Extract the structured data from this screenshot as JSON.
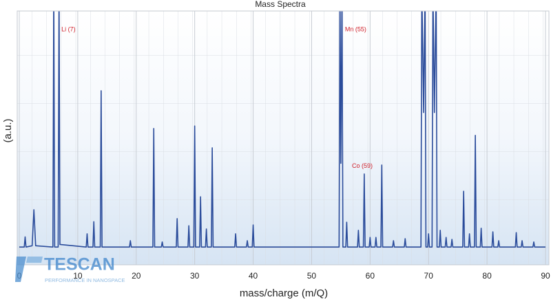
{
  "chart_data": {
    "type": "line",
    "title": "Mass Spectra",
    "x_label": "mass/charge (m/Q)",
    "y_label": "(a.u.)",
    "color": "#2b4c9b",
    "xlim": [
      0,
      90
    ],
    "ylim": [
      0,
      100
    ],
    "xticks": [
      0,
      10,
      20,
      30,
      40,
      50,
      60,
      70,
      80,
      90
    ],
    "grid": true,
    "x": [
      0,
      0.85,
      1,
      1.15,
      2.2,
      2.5,
      2.8,
      5.75,
      5.9,
      6.05,
      6.65,
      6.8,
      6.95,
      11.45,
      11.6,
      11.75,
      12.6,
      12.75,
      12.9,
      13.85,
      14,
      14.15,
      18.85,
      19,
      19.15,
      22.85,
      23,
      23.15,
      24.3,
      24.45,
      24.6,
      26.85,
      27,
      27.15,
      28.85,
      29,
      29.15,
      29.85,
      30,
      30.15,
      30.85,
      31,
      31.15,
      31.85,
      32,
      32.15,
      32.85,
      33,
      33.15,
      36.85,
      37,
      37.15,
      38.85,
      39,
      39.15,
      39.85,
      40,
      40.15,
      54.7,
      54.85,
      55,
      55.2,
      55.35,
      55.85,
      56,
      56.15,
      57.85,
      58,
      58.15,
      58.85,
      59,
      59.15,
      59.85,
      60,
      60.15,
      60.85,
      61,
      61.15,
      61.85,
      62,
      62.15,
      63.85,
      64,
      64.15,
      65.85,
      66,
      66.15,
      68.7,
      68.85,
      69.15,
      69.4,
      69.55,
      69.85,
      70,
      70.15,
      70.6,
      70.75,
      71,
      71.3,
      71.45,
      71.85,
      72,
      72.15,
      72.85,
      73,
      73.15,
      73.85,
      74,
      74.15,
      75.85,
      76,
      76.15,
      76.85,
      77,
      77.15,
      77.85,
      78,
      78.15,
      78.85,
      79,
      79.15,
      80.85,
      81,
      81.15,
      81.85,
      82,
      82.15,
      84.85,
      85,
      85.15,
      85.85,
      86,
      86.15,
      87.85,
      88,
      88.15,
      90
    ],
    "values": [
      7,
      7,
      11,
      7,
      7.5,
      21.7,
      7.5,
      7,
      110,
      7,
      7,
      110,
      8,
      7,
      12.2,
      7,
      7,
      17,
      7,
      7,
      68.6,
      7,
      7,
      9.5,
      7,
      7,
      53.7,
      7,
      7,
      9,
      7,
      7,
      18.2,
      7,
      7,
      15.4,
      7,
      7,
      54.7,
      7,
      7,
      26.8,
      7,
      7,
      14.1,
      7,
      7,
      46.1,
      7,
      7,
      12.2,
      7,
      7,
      9.5,
      7,
      7,
      15.7,
      7,
      7,
      110,
      40,
      110,
      7,
      7,
      16.8,
      7,
      7,
      13.6,
      7,
      7,
      35.8,
      7,
      7,
      10.8,
      7,
      7,
      10.8,
      7,
      7,
      39.3,
      7,
      7,
      9.5,
      7,
      7,
      10.3,
      7,
      7,
      110,
      60,
      110,
      7,
      7,
      12.2,
      7,
      7,
      110,
      60,
      110,
      7,
      7,
      13.6,
      7,
      7,
      10.8,
      7,
      7,
      10,
      7,
      7,
      29,
      7,
      7,
      12.2,
      7,
      7,
      51,
      7,
      7,
      14.4,
      7,
      7,
      13,
      7,
      7,
      9.5,
      7,
      7,
      12.7,
      7,
      7,
      9.5,
      7,
      7,
      9,
      7,
      7
    ],
    "annotations": [
      {
        "text": "Li (7)",
        "x": 7.2,
        "y": 92.7
      },
      {
        "text": "Mn (55)",
        "x": 55.7,
        "y": 92.7
      },
      {
        "text": "Co (59)",
        "x": 56.9,
        "y": 38.8
      }
    ],
    "logo": {
      "name": "TESCAN",
      "tagline": "PERFORMANCE IN NANOSPACE"
    }
  }
}
